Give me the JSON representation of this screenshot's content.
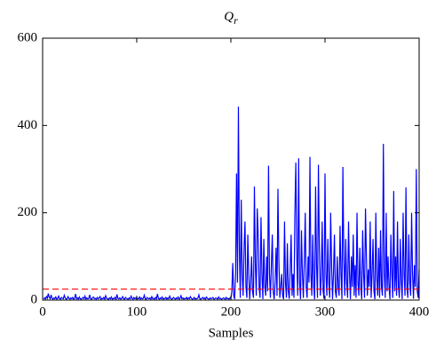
{
  "chart_data": {
    "type": "line",
    "title": "Q",
    "title_subscript": "r",
    "x_label": "Samples",
    "xlim": [
      0,
      400
    ],
    "ylim": [
      0,
      600
    ],
    "xticks": [
      0,
      100,
      200,
      300,
      400
    ],
    "yticks": [
      0,
      200,
      400,
      600
    ],
    "threshold": 25,
    "threshold_color": "#ff0000",
    "series": [
      {
        "color": "#0000ff",
        "x": [
          1,
          2,
          3,
          4,
          5,
          6,
          7,
          8,
          9,
          10,
          11,
          12,
          13,
          14,
          15,
          16,
          17,
          18,
          19,
          20,
          21,
          22,
          23,
          24,
          25,
          26,
          27,
          28,
          29,
          30,
          31,
          32,
          33,
          34,
          35,
          36,
          37,
          38,
          39,
          40,
          41,
          42,
          43,
          44,
          45,
          46,
          47,
          48,
          49,
          50,
          51,
          52,
          53,
          54,
          55,
          56,
          57,
          58,
          59,
          60,
          61,
          62,
          63,
          64,
          65,
          66,
          67,
          68,
          69,
          70,
          71,
          72,
          73,
          74,
          75,
          76,
          77,
          78,
          79,
          80,
          81,
          82,
          83,
          84,
          85,
          86,
          87,
          88,
          89,
          90,
          91,
          92,
          93,
          94,
          95,
          96,
          97,
          98,
          99,
          100,
          101,
          102,
          103,
          104,
          105,
          106,
          107,
          108,
          109,
          110,
          111,
          112,
          113,
          114,
          115,
          116,
          117,
          118,
          119,
          120,
          121,
          122,
          123,
          124,
          125,
          126,
          127,
          128,
          129,
          130,
          131,
          132,
          133,
          134,
          135,
          136,
          137,
          138,
          139,
          140,
          141,
          142,
          143,
          144,
          145,
          146,
          147,
          148,
          149,
          150,
          151,
          152,
          153,
          154,
          155,
          156,
          157,
          158,
          159,
          160,
          161,
          162,
          163,
          164,
          165,
          166,
          167,
          168,
          169,
          170,
          171,
          172,
          173,
          174,
          175,
          176,
          177,
          178,
          179,
          180,
          181,
          182,
          183,
          184,
          185,
          186,
          187,
          188,
          189,
          190,
          191,
          192,
          193,
          194,
          195,
          196,
          197,
          198,
          199,
          200,
          201,
          202,
          203,
          204,
          205,
          206,
          207,
          208,
          209,
          210,
          211,
          212,
          213,
          214,
          215,
          216,
          217,
          218,
          219,
          220,
          221,
          222,
          223,
          224,
          225,
          226,
          227,
          228,
          229,
          230,
          231,
          232,
          233,
          234,
          235,
          236,
          237,
          238,
          239,
          240,
          241,
          242,
          243,
          244,
          245,
          246,
          247,
          248,
          249,
          250,
          251,
          252,
          253,
          254,
          255,
          256,
          257,
          258,
          259,
          260,
          261,
          262,
          263,
          264,
          265,
          266,
          267,
          268,
          269,
          270,
          271,
          272,
          273,
          274,
          275,
          276,
          277,
          278,
          279,
          280,
          281,
          282,
          283,
          284,
          285,
          286,
          287,
          288,
          289,
          290,
          291,
          292,
          293,
          294,
          295,
          296,
          297,
          298,
          299,
          300,
          301,
          302,
          303,
          304,
          305,
          306,
          307,
          308,
          309,
          310,
          311,
          312,
          313,
          314,
          315,
          316,
          317,
          318,
          319,
          320,
          321,
          322,
          323,
          324,
          325,
          326,
          327,
          328,
          329,
          330,
          331,
          332,
          333,
          334,
          335,
          336,
          337,
          338,
          339,
          340,
          341,
          342,
          343,
          344,
          345,
          346,
          347,
          348,
          349,
          350,
          351,
          352,
          353,
          354,
          355,
          356,
          357,
          358,
          359,
          360,
          361,
          362,
          363,
          364,
          365,
          366,
          367,
          368,
          369,
          370,
          371,
          372,
          373,
          374,
          375,
          376,
          377,
          378,
          379,
          380,
          381,
          382,
          383,
          384,
          385,
          386,
          387,
          388,
          389,
          390,
          391,
          392,
          393,
          394,
          395,
          396,
          397,
          398,
          399,
          400
        ],
        "values": [
          3,
          5,
          2,
          8,
          4,
          15,
          6,
          3,
          12,
          4,
          2,
          5,
          3,
          7,
          2,
          4,
          9,
          3,
          2,
          6,
          4,
          3,
          11,
          5,
          2,
          3,
          8,
          4,
          2,
          5,
          3,
          6,
          2,
          4,
          14,
          3,
          5,
          2,
          7,
          3,
          2,
          4,
          6,
          3,
          9,
          2,
          5,
          3,
          4,
          12,
          3,
          2,
          5,
          7,
          3,
          4,
          2,
          6,
          3,
          5,
          8,
          2,
          4,
          3,
          6,
          2,
          10,
          4,
          3,
          2,
          5,
          3,
          7,
          2,
          4,
          3,
          6,
          2,
          13,
          4,
          3,
          5,
          2,
          4,
          8,
          3,
          2,
          6,
          4,
          3,
          2,
          5,
          3,
          9,
          4,
          2,
          6,
          3,
          5,
          2,
          4,
          3,
          7,
          2,
          5,
          3,
          4,
          11,
          3,
          2,
          6,
          4,
          3,
          5,
          2,
          8,
          3,
          4,
          2,
          6,
          3,
          14,
          4,
          2,
          5,
          3,
          7,
          2,
          4,
          3,
          6,
          2,
          5,
          3,
          9,
          4,
          2,
          3,
          6,
          4,
          2,
          5,
          3,
          7,
          2,
          4,
          10,
          3,
          5,
          2,
          4,
          3,
          6,
          2,
          5,
          3,
          8,
          4,
          2,
          3,
          6,
          2,
          4,
          3,
          5,
          12,
          3,
          2,
          4,
          6,
          3,
          5,
          2,
          7,
          4,
          3,
          2,
          5,
          3,
          4,
          6,
          2,
          3,
          5,
          4,
          2,
          7,
          3,
          4,
          2,
          3,
          5,
          4,
          2,
          6,
          3,
          4,
          2,
          5,
          3,
          20,
          85,
          10,
          2,
          60,
          290,
          40,
          443,
          120,
          5,
          230,
          60,
          10,
          120,
          180,
          30,
          5,
          150,
          60,
          2,
          40,
          100,
          20,
          5,
          260,
          80,
          10,
          210,
          150,
          30,
          5,
          190,
          60,
          2,
          140,
          30,
          10,
          100,
          20,
          308,
          60,
          5,
          80,
          150,
          20,
          2,
          40,
          120,
          10,
          255,
          90,
          5,
          30,
          60,
          10,
          2,
          180,
          40,
          5,
          130,
          20,
          3,
          70,
          150,
          10,
          60,
          5,
          200,
          315,
          100,
          10,
          325,
          40,
          2,
          160,
          60,
          5,
          90,
          200,
          30,
          5,
          100,
          40,
          328,
          60,
          10,
          150,
          30,
          2,
          260,
          80,
          5,
          310,
          120,
          10,
          50,
          180,
          20,
          3,
          290,
          60,
          10,
          140,
          40,
          5,
          200,
          80,
          2,
          60,
          150,
          20,
          5,
          100,
          30,
          10,
          170,
          60,
          2,
          305,
          90,
          10,
          140,
          40,
          5,
          180,
          60,
          2,
          100,
          30,
          150,
          10,
          80,
          5,
          200,
          40,
          10,
          120,
          30,
          2,
          160,
          60,
          5,
          210,
          100,
          10,
          70,
          30,
          180,
          5,
          60,
          140,
          20,
          2,
          200,
          50,
          10,
          120,
          5,
          160,
          30,
          10,
          358,
          60,
          5,
          200,
          20,
          100,
          30,
          2,
          150,
          60,
          5,
          250,
          20,
          100,
          10,
          180,
          30,
          5,
          140,
          40,
          2,
          200,
          60,
          10,
          258,
          30,
          5,
          150,
          40,
          10,
          200,
          60,
          3,
          80,
          30,
          300,
          20,
          5,
          70
        ]
      }
    ]
  }
}
